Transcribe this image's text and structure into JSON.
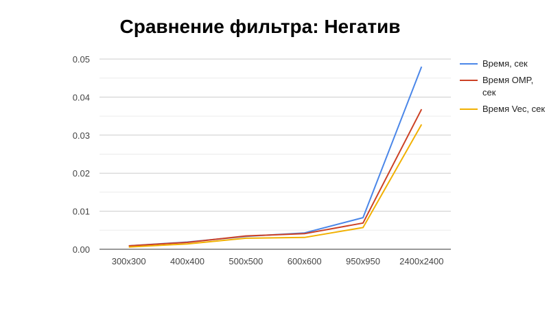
{
  "chart_data": {
    "type": "line",
    "title": "Сравнение фильтра: Негатив",
    "xlabel": "",
    "ylabel": "",
    "categories": [
      "300x300",
      "400x400",
      "500x500",
      "600x600",
      "950x950",
      "2400x2400"
    ],
    "ylim": [
      0,
      0.05
    ],
    "yticks": [
      "0.00",
      "0.01",
      "0.02",
      "0.03",
      "0.04",
      "0.05"
    ],
    "grid": true,
    "legend_position": "right",
    "series": [
      {
        "name": "Время, сек",
        "color": "#4a86e8",
        "values": [
          0.0009,
          0.0019,
          0.0034,
          0.0043,
          0.0083,
          0.048
        ]
      },
      {
        "name": "Время OMP, сек",
        "color": "#cc4125",
        "values": [
          0.0009,
          0.0018,
          0.0035,
          0.0041,
          0.0069,
          0.0368
        ]
      },
      {
        "name": "Время Vec, сек",
        "color": "#f1b000",
        "values": [
          0.0006,
          0.0014,
          0.0029,
          0.0031,
          0.0057,
          0.0328
        ]
      }
    ]
  }
}
